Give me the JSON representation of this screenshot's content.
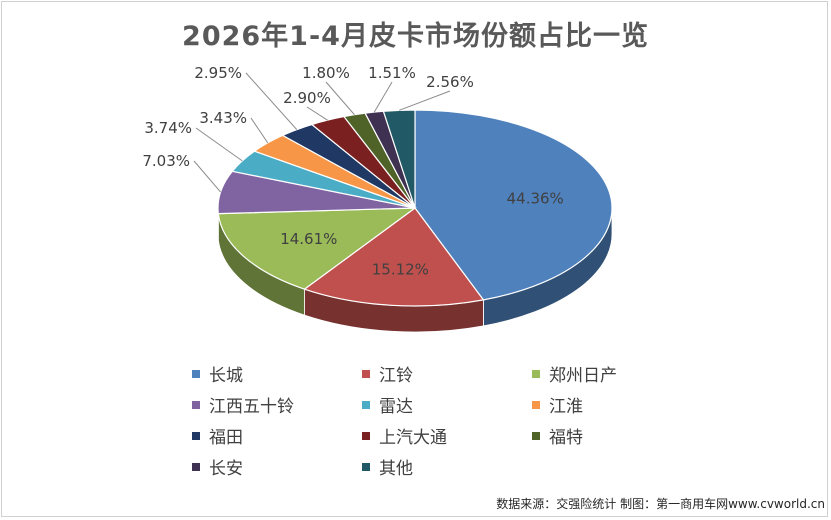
{
  "title": "2026年1-4月皮卡市场份额占比一览",
  "source": "数据来源：交强险统计 制图：第一商用车网www.cvworld.cn",
  "colors": {
    "长城": "#4f81bd",
    "江铃": "#c0504d",
    "郑州日产": "#9bbb59",
    "江西五十铃": "#8064a2",
    "雷达": "#4bacc6",
    "江淮": "#f79646",
    "福田": "#1f3864",
    "上汽大通": "#7b2020",
    "福特": "#4f6228",
    "长安": "#3f3151",
    "其他": "#215967"
  },
  "chart_data": {
    "type": "pie",
    "variant": "3d",
    "title": "2026年1-4月皮卡市场份额占比一览",
    "legend_position": "bottom",
    "slices": [
      {
        "label": "长城",
        "value": 44.36,
        "text": "44.36%"
      },
      {
        "label": "江铃",
        "value": 15.12,
        "text": "15.12%"
      },
      {
        "label": "郑州日产",
        "value": 14.61,
        "text": "14.61%"
      },
      {
        "label": "江西五十铃",
        "value": 7.03,
        "text": "7.03%"
      },
      {
        "label": "雷达",
        "value": 3.74,
        "text": "3.74%"
      },
      {
        "label": "江淮",
        "value": 3.43,
        "text": "3.43%"
      },
      {
        "label": "福田",
        "value": 2.95,
        "text": "2.95%"
      },
      {
        "label": "上汽大通",
        "value": 2.9,
        "text": "2.90%"
      },
      {
        "label": "福特",
        "value": 1.8,
        "text": "1.80%"
      },
      {
        "label": "长安",
        "value": 1.51,
        "text": "1.51%"
      },
      {
        "label": "其他",
        "value": 2.56,
        "text": "2.56%"
      }
    ]
  }
}
